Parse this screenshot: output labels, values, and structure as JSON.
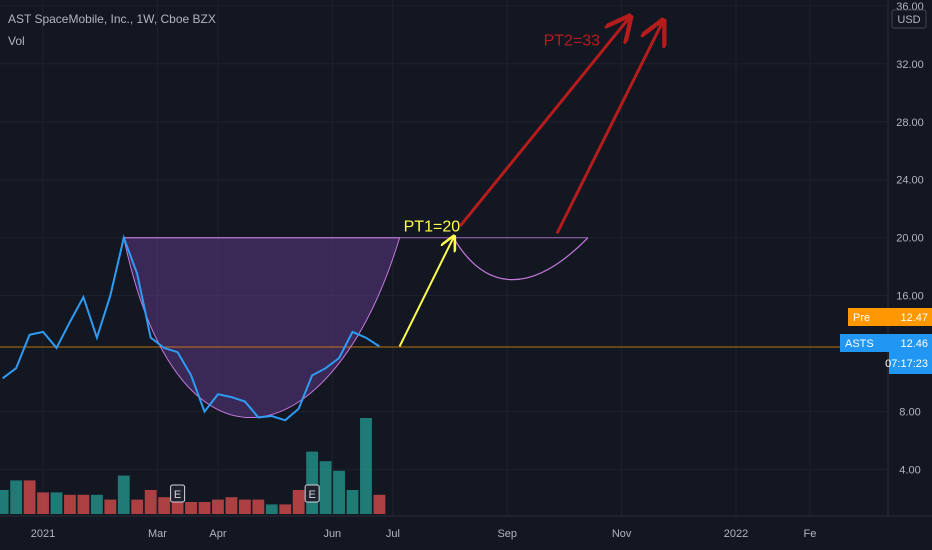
{
  "header": {
    "symbol_title": "AST SpaceMobile, Inc., 1W, Cboe BZX",
    "indicator": "Vol"
  },
  "currency": "USD",
  "price_tags": {
    "pre_label": "Pre",
    "pre_value": "12.47",
    "last_label": "ASTS",
    "last_value": "12.46",
    "countdown": "07:17:23"
  },
  "colors": {
    "background": "#131722",
    "grid": "#1e222d",
    "price_line": "#2f9cf4",
    "volume_up": "#26a69a",
    "volume_down": "#ef5350",
    "cup_fill": "#6a3d9a",
    "cup_stroke": "#c678dd",
    "pt1_color": "#ffff4d",
    "pt2_color": "#b71c1c",
    "pre_tag": "#ff9800",
    "last_tag": "#2196f3"
  },
  "chart_data": {
    "type": "line",
    "title": "AST SpaceMobile, Inc., 1W, Cboe BZX",
    "y_axis": {
      "ticks": [
        "36.00",
        "32.00",
        "28.00",
        "24.00",
        "20.00",
        "16.00",
        "8.00",
        "4.00"
      ],
      "tick_values": [
        36,
        32,
        28,
        24,
        20,
        16,
        8,
        4
      ],
      "range": [
        0.8,
        36.4
      ]
    },
    "x_axis": {
      "ticks": [
        "2021",
        "Mar",
        "Apr",
        "Jun",
        "Jul",
        "Sep",
        "Nov",
        "2022",
        "Fe"
      ],
      "tick_weeks": [
        0,
        8.5,
        13,
        21.5,
        26,
        34.5,
        43,
        51.5,
        57
      ]
    },
    "week_range": [
      -3.2,
      62.8
    ],
    "series": [
      {
        "name": "ASTS",
        "x_weeks": [
          -3,
          -2,
          -1,
          0,
          1,
          2,
          3,
          4,
          5,
          6,
          7,
          8,
          9,
          10,
          11,
          12,
          13,
          14,
          15,
          16,
          17,
          18,
          19,
          20,
          21,
          22,
          23,
          24,
          25
        ],
        "y": [
          10.3,
          11.0,
          13.3,
          13.5,
          12.4,
          14.2,
          15.9,
          13.1,
          16.0,
          20.0,
          17.5,
          13.1,
          12.4,
          12.1,
          10.5,
          8.0,
          9.2,
          9.0,
          8.7,
          7.6,
          7.7,
          7.4,
          8.2,
          10.5,
          11.0,
          11.7,
          13.5,
          13.1,
          12.5
        ]
      }
    ],
    "volume": {
      "name": "Vol",
      "x_weeks": [
        -3,
        -2,
        -1,
        0,
        1,
        2,
        3,
        4,
        5,
        6,
        7,
        8,
        9,
        10,
        11,
        12,
        13,
        14,
        15,
        16,
        17,
        18,
        19,
        20,
        21,
        22,
        23,
        24,
        25
      ],
      "values": [
        1.0,
        1.4,
        1.4,
        0.9,
        0.9,
        0.8,
        0.8,
        0.8,
        0.6,
        1.6,
        0.6,
        1.0,
        0.7,
        0.6,
        0.5,
        0.5,
        0.6,
        0.7,
        0.6,
        0.6,
        0.4,
        0.4,
        1.0,
        2.6,
        2.2,
        1.8,
        1.0,
        4.0,
        0.8
      ],
      "direction": [
        "up",
        "up",
        "down",
        "down",
        "up",
        "down",
        "down",
        "up",
        "down",
        "up",
        "down",
        "down",
        "down",
        "down",
        "down",
        "down",
        "down",
        "down",
        "down",
        "down",
        "up",
        "down",
        "down",
        "up",
        "up",
        "up",
        "up",
        "up",
        "down"
      ]
    },
    "earnings_markers": [
      {
        "label": "E",
        "week": 10
      },
      {
        "label": "E",
        "week": 20
      }
    ],
    "current_price": 12.46,
    "cup_level": 20.0,
    "cup_bottom": 7.1,
    "handle_bottom": 16.9,
    "annotations": [
      {
        "text": "PT1=20",
        "price": 20.0
      },
      {
        "text": "PT2=33",
        "price": 33.0
      }
    ],
    "grid": true,
    "legend_position": "top-left"
  }
}
